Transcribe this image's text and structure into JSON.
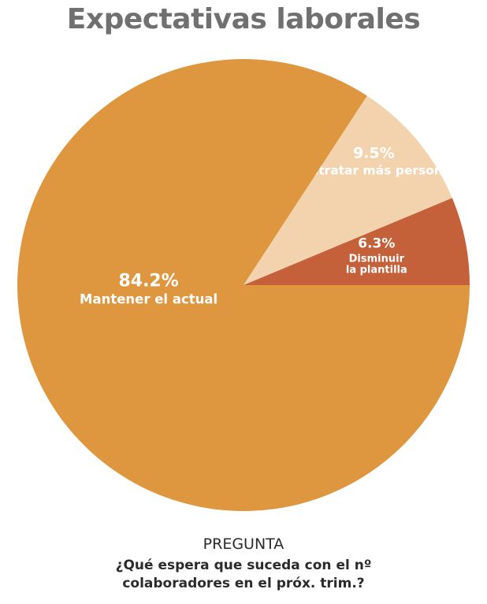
{
  "title": "Expectativas laborales",
  "chart_data": {
    "type": "pie",
    "title": "Expectativas laborales",
    "slices": [
      {
        "label_lines": [
          "Disminuir",
          "la plantilla"
        ],
        "value": 6.3,
        "value_label": "6.3%",
        "color": "#C4603A"
      },
      {
        "label_lines": [
          "Contratar más personal"
        ],
        "value": 9.5,
        "value_label": "9.5%",
        "color": "#F2D3AE"
      },
      {
        "label_lines": [
          "Mantener el actual"
        ],
        "value": 84.2,
        "value_label": "84.2%",
        "color": "#DE963F"
      }
    ]
  },
  "footer": {
    "heading": "PREGUNTA",
    "question_line1": "¿Qué espera que suceda con el nº",
    "question_line2": "colaboradores en el próx. trim.?"
  }
}
